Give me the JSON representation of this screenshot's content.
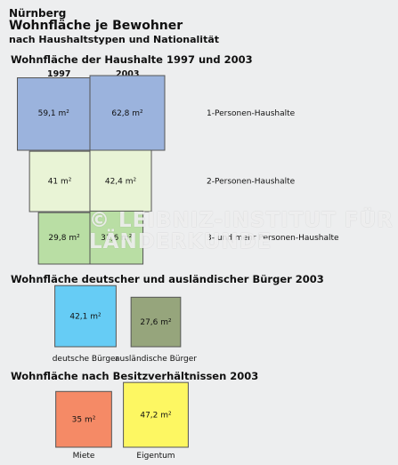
{
  "header": {
    "city": "Nürnberg",
    "title": "Wohnfläche je Bewohner",
    "subtitle": "nach Haushaltstypen und Nationalität"
  },
  "watermark": "© LEIBNIZ-INSTITUT FÜR LÄNDERKUNDE",
  "chart_data": [
    {
      "type": "area-squares",
      "title": "Wohnfläche der Haushalte 1997 und 2003",
      "columns": [
        "1997",
        "2003"
      ],
      "unit": "m²",
      "rows": [
        {
          "label": "1-Personen-Haushalte",
          "values": [
            59.1,
            62.8
          ],
          "value_labels": [
            "59,1 m²",
            "62,8 m²"
          ],
          "color": "#9bb3dd"
        },
        {
          "label": "2-Personen-Haushalte",
          "values": [
            41,
            42.4
          ],
          "value_labels": [
            "41 m²",
            "42,4 m²"
          ],
          "color": "#e9f4d6"
        },
        {
          "label": "3- und mehr Personen-Haushalte",
          "values": [
            29.8,
            31.6
          ],
          "value_labels": [
            "29,8 m²",
            "31,6 m²"
          ],
          "color": "#b9dea4"
        }
      ]
    },
    {
      "type": "area-squares",
      "title": "Wohnfläche deutscher und ausländischer Bürger 2003",
      "unit": "m²",
      "items": [
        {
          "label": "deutsche Bürger",
          "value": 42.1,
          "value_label": "42,1 m²",
          "color": "#66ccf5"
        },
        {
          "label": "ausländische Bürger",
          "value": 27.6,
          "value_label": "27,6 m²",
          "color": "#96a57c"
        }
      ]
    },
    {
      "type": "area-squares",
      "title": "Wohnfläche nach Besitzverhältnissen 2003",
      "unit": "m²",
      "items": [
        {
          "label": "Miete",
          "value": 35,
          "value_label": "35 m²",
          "color": "#f58a66"
        },
        {
          "label": "Eigentum",
          "value": 47.2,
          "value_label": "47,2 m²",
          "color": "#fdf762"
        }
      ]
    }
  ]
}
